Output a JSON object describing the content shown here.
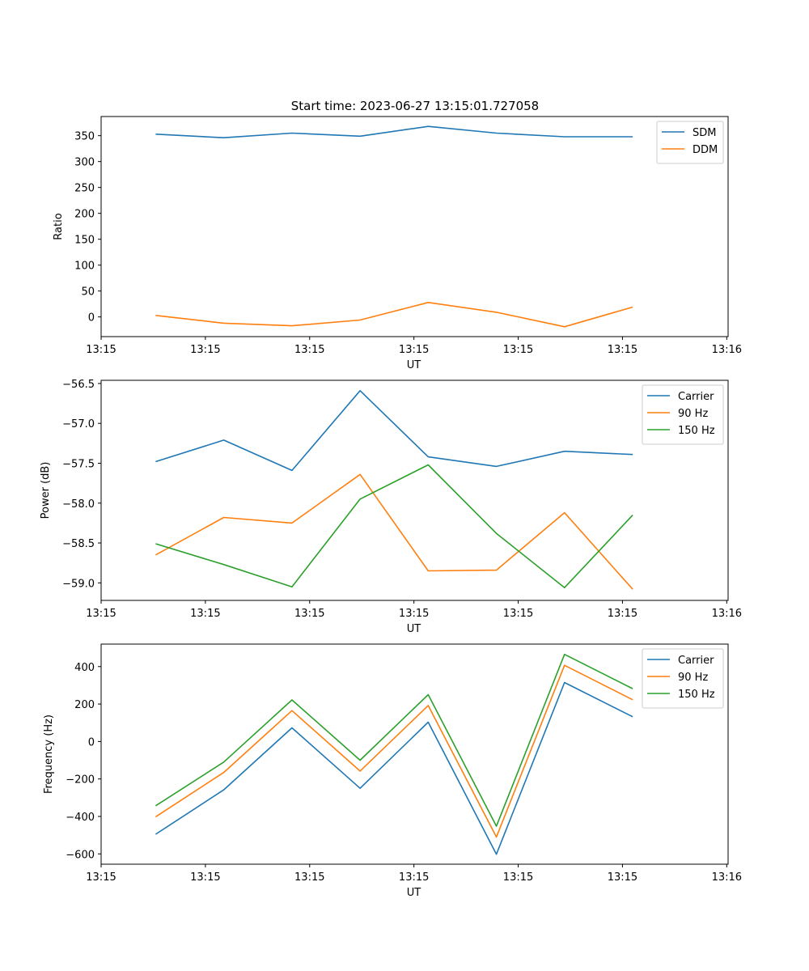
{
  "title": "Start time: 2023-06-27 13:15:01.727058",
  "chart_data": [
    {
      "type": "line",
      "title": "Start time: 2023-06-27 13:15:01.727058",
      "xlabel": "UT",
      "ylabel": "Ratio",
      "xlim": [
        -0.4,
        4.2
      ],
      "ylim": [
        -38,
        387
      ],
      "x": [
        0,
        0.5,
        1,
        1.5,
        2,
        2.5,
        3,
        3.5
      ],
      "xticks": [
        -0.4,
        0.365,
        1.13,
        1.895,
        2.66,
        3.425,
        4.19
      ],
      "xticklabels": [
        "13:15",
        "13:15",
        "13:15",
        "13:15",
        "13:15",
        "13:15",
        "13:16"
      ],
      "yticks": [
        0,
        50,
        100,
        150,
        200,
        250,
        300,
        350
      ],
      "yticklabels": [
        "0",
        "50",
        "100",
        "150",
        "200",
        "250",
        "300",
        "350"
      ],
      "legend": "top-right",
      "grid": false,
      "series": [
        {
          "name": "SDM",
          "color": "#1f77b4",
          "values": [
            353,
            346,
            355,
            349,
            368,
            355,
            348,
            348
          ]
        },
        {
          "name": "DDM",
          "color": "#ff7f0e",
          "values": [
            3,
            -12,
            -17,
            -6,
            28,
            9,
            -19,
            19
          ]
        }
      ]
    },
    {
      "type": "line",
      "xlabel": "UT",
      "ylabel": "Power (dB)",
      "xlim": [
        -0.4,
        4.2
      ],
      "ylim": [
        -59.22,
        -56.46
      ],
      "x": [
        0,
        0.5,
        1,
        1.5,
        2,
        2.5,
        3,
        3.5
      ],
      "xticks": [
        -0.4,
        0.365,
        1.13,
        1.895,
        2.66,
        3.425,
        4.19
      ],
      "xticklabels": [
        "13:15",
        "13:15",
        "13:15",
        "13:15",
        "13:15",
        "13:15",
        "13:16"
      ],
      "yticks": [
        -56.5,
        -57.0,
        -57.5,
        -58.0,
        -58.5,
        -59.0
      ],
      "yticklabels": [
        "−56.5",
        "−57.0",
        "−57.5",
        "−58.0",
        "−58.5",
        "−59.0"
      ],
      "legend": "top-right",
      "grid": false,
      "series": [
        {
          "name": "Carrier",
          "color": "#1f77b4",
          "values": [
            -57.48,
            -57.21,
            -57.59,
            -56.59,
            -57.42,
            -57.54,
            -57.35,
            -57.39
          ]
        },
        {
          "name": "90 Hz",
          "color": "#ff7f0e",
          "values": [
            -58.65,
            -58.18,
            -58.25,
            -57.64,
            -58.85,
            -58.84,
            -58.12,
            -59.08
          ]
        },
        {
          "name": "150 Hz",
          "color": "#2ca02c",
          "values": [
            -58.51,
            -58.77,
            -59.05,
            -57.95,
            -57.52,
            -58.38,
            -59.06,
            -58.15
          ]
        }
      ]
    },
    {
      "type": "line",
      "xlabel": "UT",
      "ylabel": "Frequency (Hz)",
      "xlim": [
        -0.4,
        4.2
      ],
      "ylim": [
        -655,
        520
      ],
      "x": [
        0,
        0.5,
        1,
        1.5,
        2,
        2.5,
        3,
        3.5
      ],
      "xticks": [
        -0.4,
        0.365,
        1.13,
        1.895,
        2.66,
        3.425,
        4.19
      ],
      "xticklabels": [
        "13:15",
        "13:15",
        "13:15",
        "13:15",
        "13:15",
        "13:15",
        "13:16"
      ],
      "yticks": [
        400,
        200,
        0,
        -200,
        -400,
        -600
      ],
      "yticklabels": [
        "400",
        "200",
        "0",
        "−200",
        "−400",
        "−600"
      ],
      "legend": "top-right",
      "grid": false,
      "series": [
        {
          "name": "Carrier",
          "color": "#1f77b4",
          "values": [
            -495,
            -258,
            73,
            -250,
            103,
            -602,
            315,
            132
          ]
        },
        {
          "name": "90 Hz",
          "color": "#ff7f0e",
          "values": [
            -402,
            -165,
            165,
            -158,
            192,
            -510,
            407,
            223
          ]
        },
        {
          "name": "150 Hz",
          "color": "#2ca02c",
          "values": [
            -343,
            -110,
            222,
            -100,
            250,
            -452,
            465,
            282
          ]
        }
      ]
    }
  ]
}
